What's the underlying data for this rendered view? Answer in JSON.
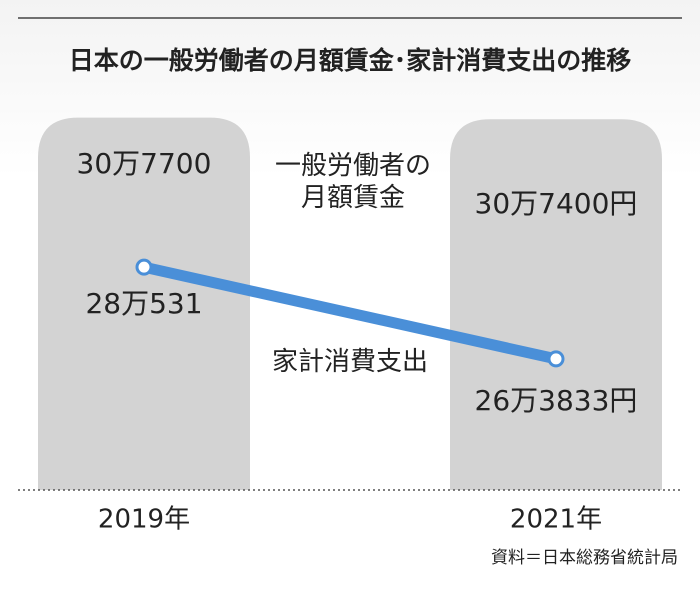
{
  "chart_data": {
    "type": "bar_line",
    "title": "日本の一般労働者の月額賃金･家計消費支出の推移",
    "categories": [
      "2019年",
      "2021年"
    ],
    "series": [
      {
        "name": "一般労働者の月額賃金",
        "type": "bar",
        "color": "#d3d3d3",
        "values": [
          307700,
          307400
        ],
        "value_labels": [
          "30万7700",
          "30万7400円"
        ]
      },
      {
        "name": "家計消費支出",
        "type": "line",
        "color": "#4a8fd8",
        "values": [
          280531,
          263833
        ],
        "value_labels": [
          "28万531",
          "26万3833円"
        ]
      }
    ],
    "ylim": [
      240000,
      320000
    ],
    "source": "資料＝日本総務省統計局"
  }
}
